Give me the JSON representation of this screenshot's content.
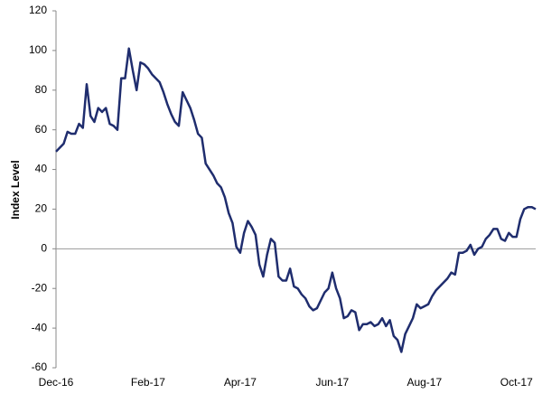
{
  "chart_data": {
    "type": "line",
    "y_label": "Index Level",
    "categories": [
      "Dec-16",
      null,
      null,
      null,
      null,
      null,
      null,
      null,
      null,
      null,
      null,
      null,
      null,
      null,
      null,
      null,
      null,
      null,
      null,
      null,
      null,
      null,
      null,
      null,
      "Feb-17",
      null,
      null,
      null,
      null,
      null,
      null,
      null,
      null,
      null,
      null,
      null,
      null,
      null,
      null,
      null,
      null,
      null,
      null,
      null,
      null,
      null,
      null,
      null,
      "Apr-17",
      null,
      null,
      null,
      null,
      null,
      null,
      null,
      null,
      null,
      null,
      null,
      null,
      null,
      null,
      null,
      null,
      null,
      null,
      null,
      null,
      null,
      null,
      null,
      "Jun-17",
      null,
      null,
      null,
      null,
      null,
      null,
      null,
      null,
      null,
      null,
      null,
      null,
      null,
      null,
      null,
      null,
      null,
      null,
      null,
      null,
      null,
      null,
      null,
      "Aug-17",
      null,
      null,
      null,
      null,
      null,
      null,
      null,
      null,
      null,
      null,
      null,
      null,
      null,
      null,
      null,
      null,
      null,
      null,
      null,
      null,
      null,
      null,
      null,
      "Oct-17",
      null,
      null,
      null,
      null,
      null
    ],
    "series": [
      {
        "name": "Index Level",
        "color": "#1f2d6e",
        "values": [
          49,
          51,
          53,
          59,
          58,
          58,
          63,
          61,
          83,
          67,
          64,
          71,
          69,
          71,
          63,
          62,
          60,
          86,
          86,
          101,
          90,
          80,
          94,
          93,
          91,
          88,
          86,
          84,
          79,
          73,
          68,
          64,
          62,
          79,
          75,
          71,
          65,
          58,
          56,
          43,
          40,
          37,
          33,
          31,
          26,
          18,
          13,
          1,
          -2,
          8,
          14,
          11,
          7,
          -8,
          -14,
          -3,
          5,
          3,
          -14,
          -16,
          -16,
          -10,
          -19,
          -20,
          -23,
          -25,
          -29,
          -31,
          -30,
          -26,
          -22,
          -20,
          -12,
          -20,
          -25,
          -35,
          -34,
          -31,
          -32,
          -41,
          -38,
          -38,
          -37,
          -39,
          -38,
          -35,
          -39,
          -36,
          -44,
          -46,
          -52,
          -43,
          -39,
          -35,
          -28,
          -30,
          -29,
          -28,
          -24,
          -21,
          -19,
          -17,
          -15,
          -12,
          -13,
          -2,
          -2,
          -1,
          2,
          -3,
          0,
          1,
          5,
          7,
          10,
          10,
          5,
          4,
          8,
          6,
          6,
          15,
          20,
          21,
          21,
          20
        ]
      }
    ],
    "ylim": [
      -60,
      120
    ],
    "yticks": [
      -60,
      -40,
      -20,
      0,
      20,
      40,
      60,
      80,
      100,
      120
    ],
    "zero_line": true
  }
}
